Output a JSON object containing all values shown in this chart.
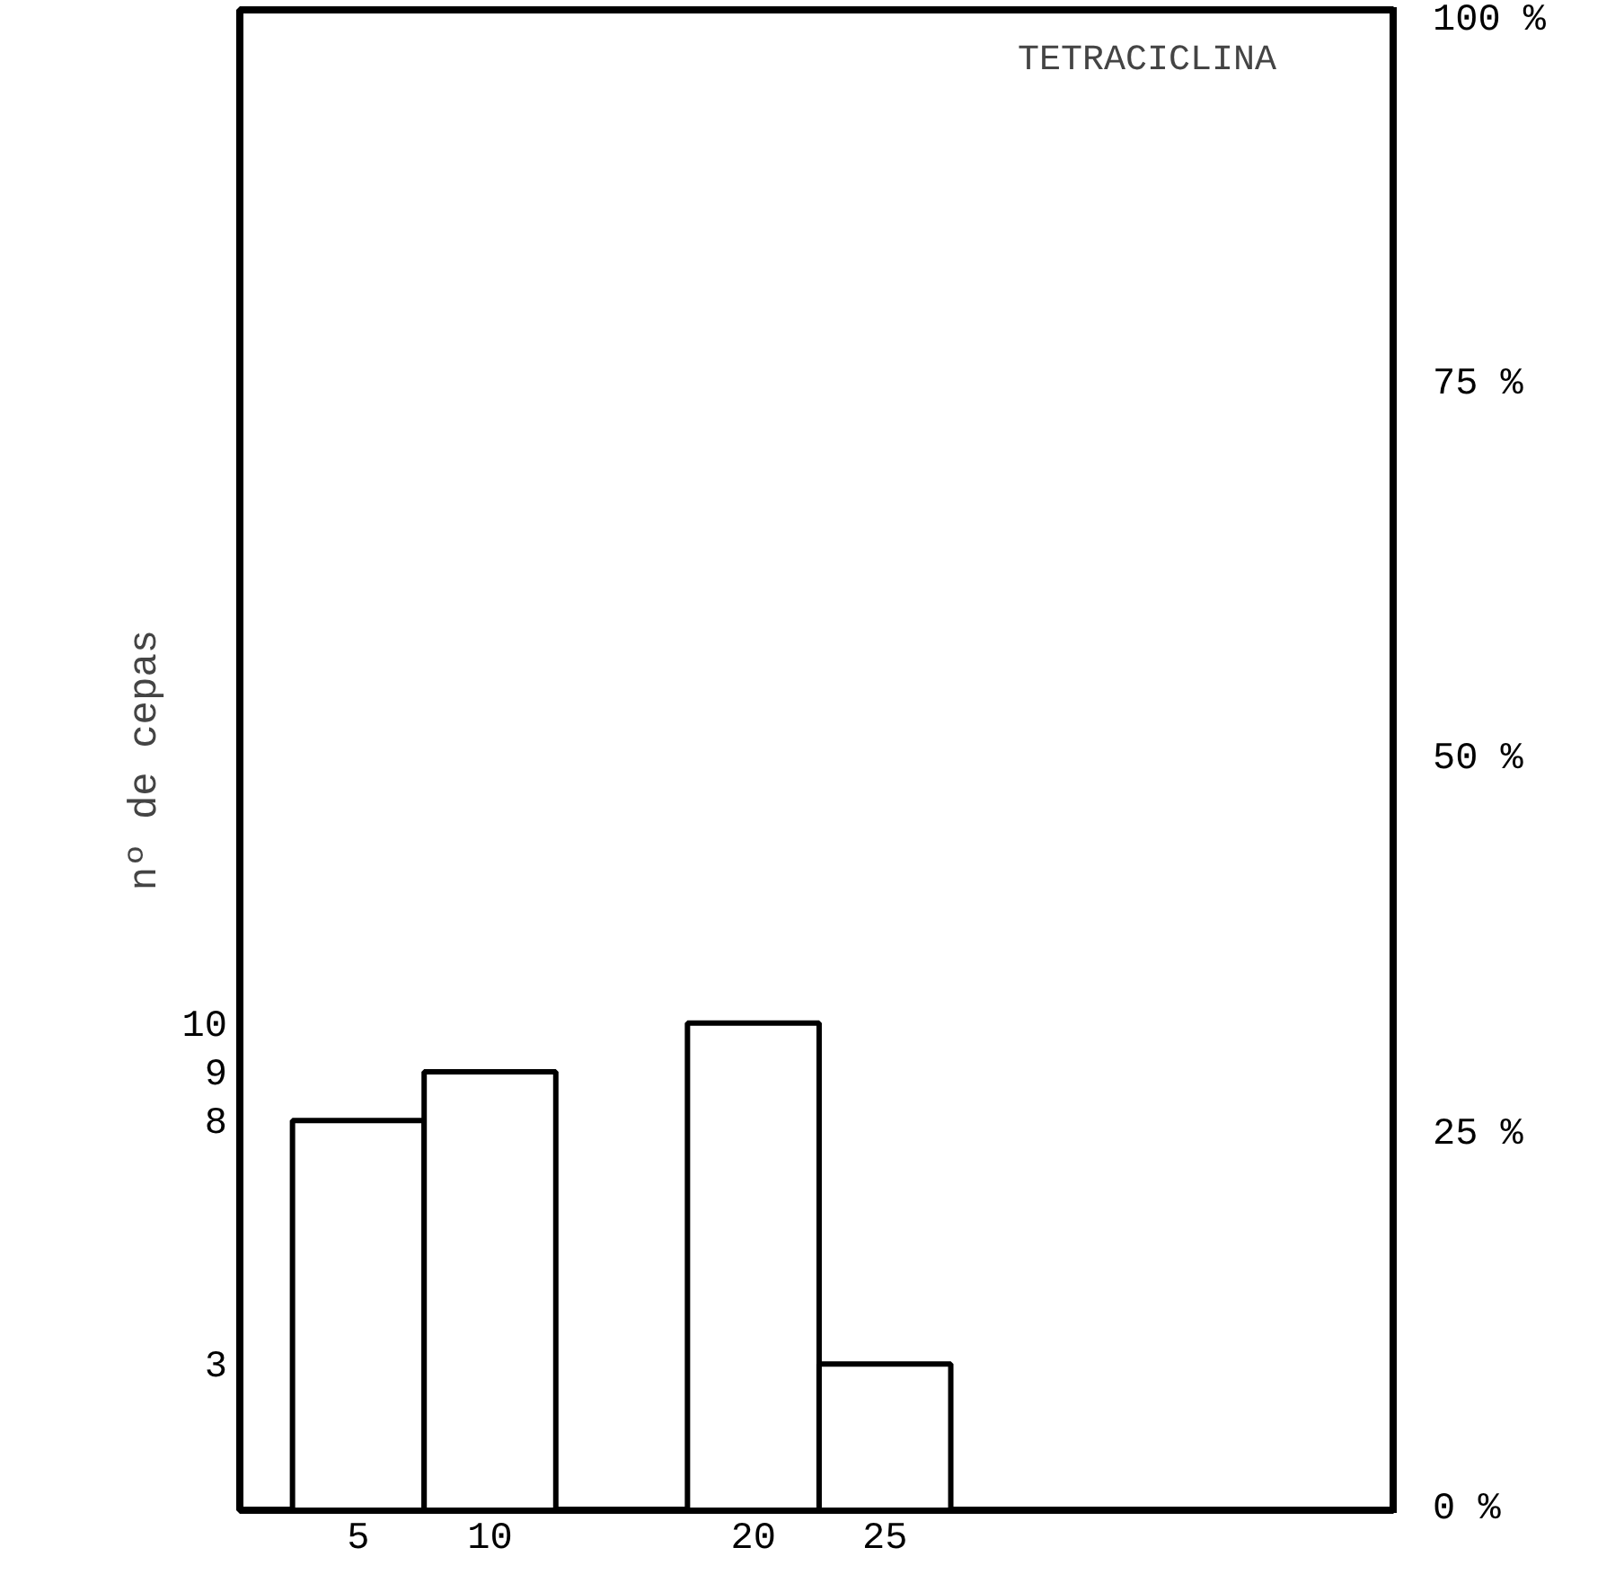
{
  "chart_data": {
    "type": "bar",
    "annotations": [
      "TETRACICLINA"
    ],
    "ylabel": "nº de cepas",
    "x": [
      5,
      10,
      20,
      25
    ],
    "values": [
      8,
      9,
      10,
      3
    ],
    "color": "#ffffff",
    "xlim": [
      0.5,
      44.3
    ],
    "xticks": [
      5,
      10,
      20,
      25
    ],
    "ylim": [
      0,
      30.8
    ],
    "yticks": [
      3,
      8,
      9,
      10
    ],
    "y2lim": [
      0,
      100
    ],
    "y2ticks": [
      {
        "value": 0,
        "label": "0 %"
      },
      {
        "value": 25,
        "label": "25 %"
      },
      {
        "value": 50,
        "label": "50 %"
      },
      {
        "value": 75,
        "label": "75 %"
      },
      {
        "value": 100,
        "label": "100 %"
      }
    ],
    "grid": false
  }
}
